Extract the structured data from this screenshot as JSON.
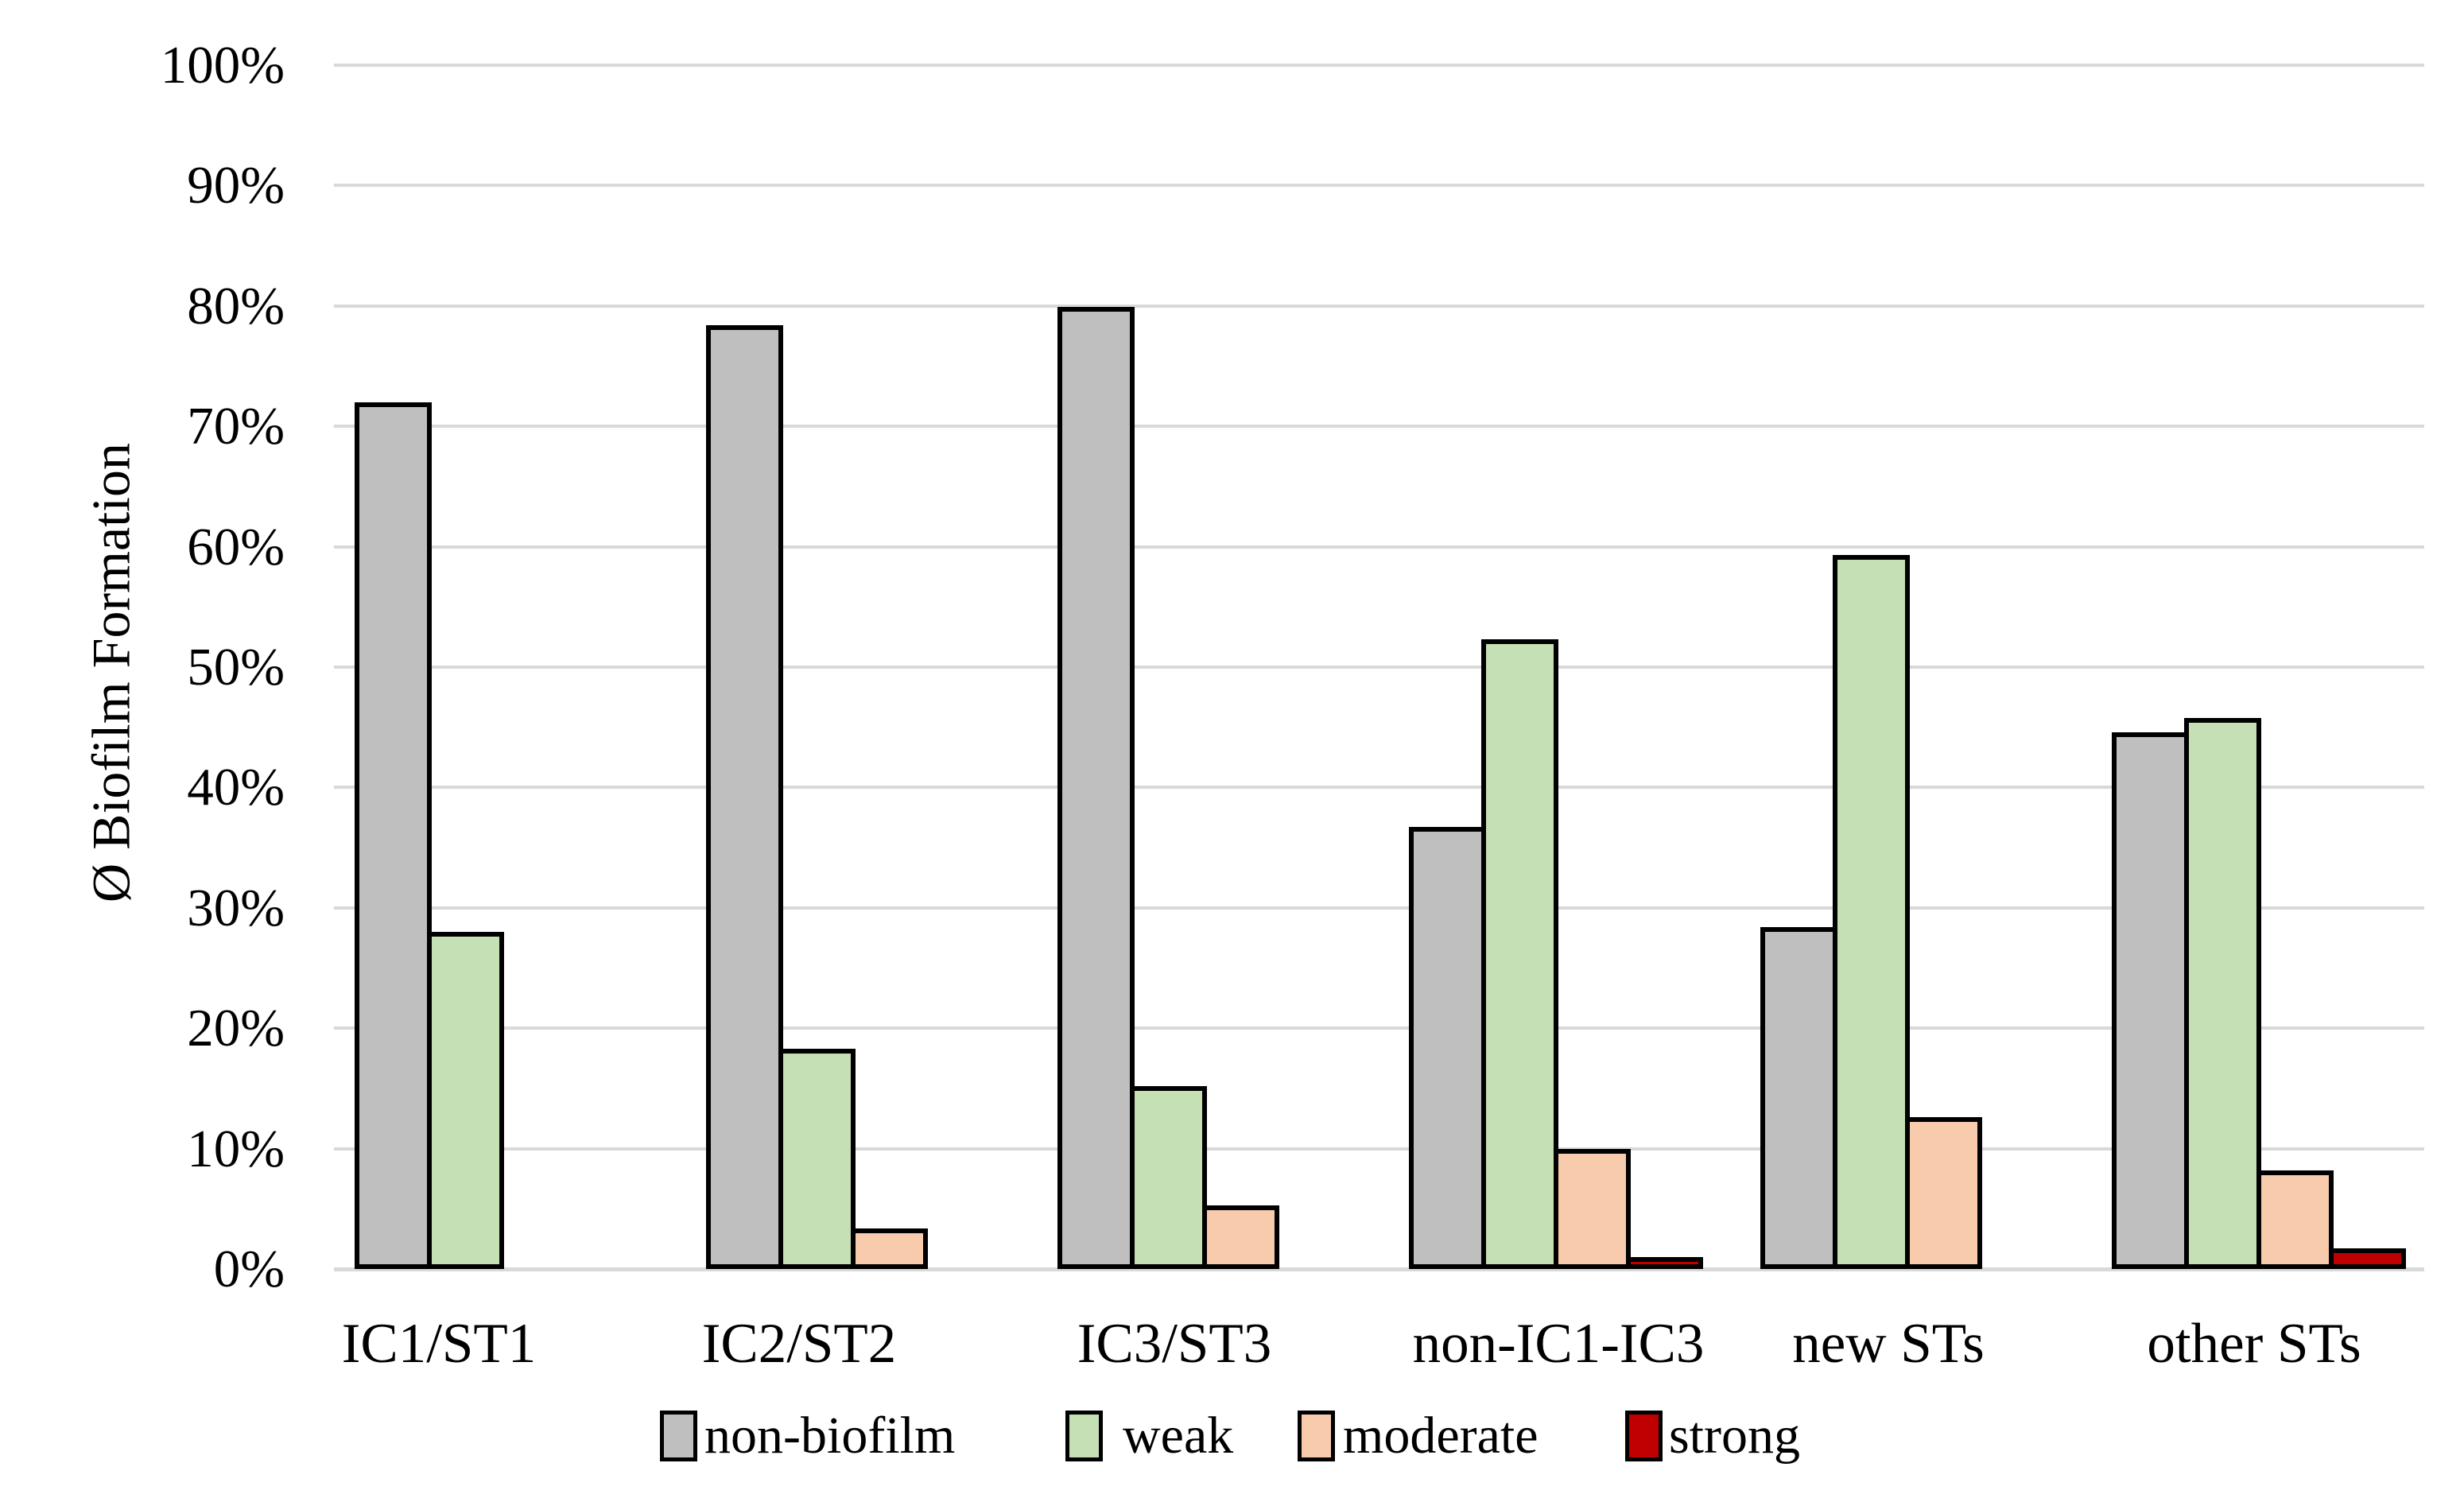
{
  "chart_data": {
    "type": "bar",
    "title": "",
    "xlabel": "",
    "ylabel": "Ø Biofilm Formation",
    "ylim": [
      0,
      100
    ],
    "ytick_step": 10,
    "ytick_labels": [
      "0%",
      "10%",
      "20%",
      "30%",
      "40%",
      "50%",
      "60%",
      "70%",
      "80%",
      "90%",
      "100%"
    ],
    "grid": "horizontal",
    "gridline_color": "#d9d9d9",
    "legend_position": "bottom",
    "bar_outline_color": "#000000",
    "categories": [
      "IC1/ST1",
      "IC2/ST2",
      "IC3/ST3",
      "non-IC1-IC3",
      "new STs",
      "other STs"
    ],
    "series": [
      {
        "name": "non-biofilm",
        "color": "#bfbfbf",
        "values": [
          72.0,
          78.4,
          79.9,
          36.7,
          28.4,
          44.6
        ]
      },
      {
        "name": "weak",
        "color": "#c5e0b4",
        "values": [
          28.0,
          18.3,
          15.2,
          52.3,
          59.3,
          45.8
        ]
      },
      {
        "name": "moderate",
        "color": "#f8cbad",
        "values": [
          0,
          3.4,
          5.3,
          10.0,
          12.6,
          8.2
        ]
      },
      {
        "name": "strong",
        "color": "#c00000",
        "values": [
          0,
          0,
          0,
          1.0,
          0,
          1.7
        ]
      }
    ]
  }
}
